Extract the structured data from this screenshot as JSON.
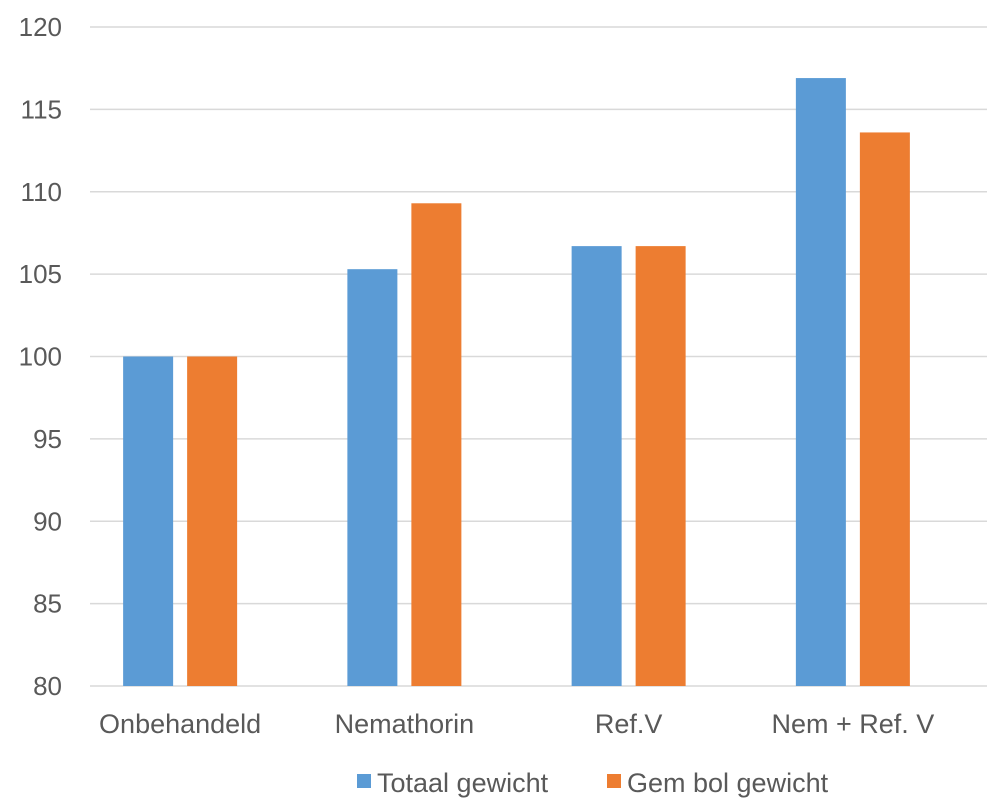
{
  "chart_data": {
    "type": "bar",
    "title": "",
    "xlabel": "",
    "ylabel": "",
    "categories": [
      "Onbehandeld",
      "Nemathorin",
      "Ref.V",
      "Nem + Ref. V"
    ],
    "series": [
      {
        "name": "Totaal gewicht",
        "values": [
          100,
          105.3,
          106.7,
          116.9
        ],
        "color": "#5b9bd5"
      },
      {
        "name": "Gem bol gewicht",
        "values": [
          100,
          109.3,
          106.7,
          113.6
        ],
        "color": "#ed7d31"
      }
    ],
    "ylim": [
      80,
      120
    ],
    "yticks": [
      80,
      85,
      90,
      95,
      100,
      105,
      110,
      115,
      120
    ],
    "grid": true,
    "legend_position": "bottom"
  }
}
